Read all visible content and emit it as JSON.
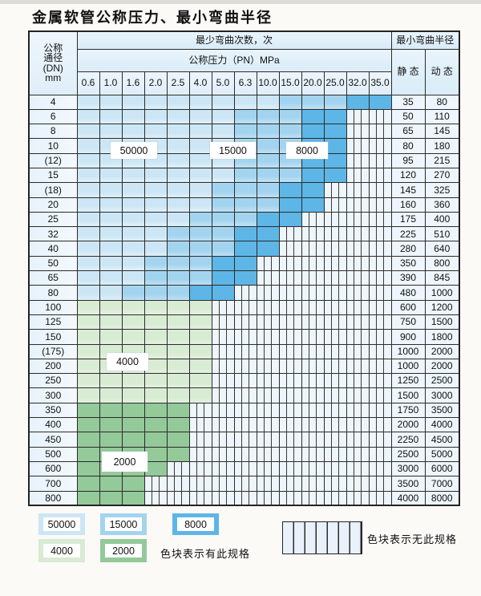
{
  "title": "金属软管公称压力、最小弯曲半径",
  "colors": {
    "blue_50000": "#cce6f5",
    "blue_15000": "#a3d4ef",
    "blue_8000": "#5db6e6",
    "green_4000": "#d8ebd3",
    "green_2000": "#94c999",
    "hatch_bg": "#eef5fb",
    "grid_line": "#2b2b2b"
  },
  "table": {
    "header": {
      "dn_label_lines": [
        "公称",
        "通径",
        "(DN)",
        "mm"
      ],
      "bend_cycles_label": "最少弯曲次数，次",
      "min_bend_radius_label": "最小弯曲半径",
      "pressure_label": "公称压力（PN）MPa",
      "static_label": "静 态",
      "dynamic_label": "动 态",
      "pressure_columns": [
        "0.6",
        "1.0",
        "1.6",
        "2.0",
        "2.5",
        "4.0",
        "5.0",
        "6.3",
        "10.0",
        "15.0",
        "20.0",
        "25.0",
        "32.0",
        "35.0"
      ]
    },
    "rows": [
      {
        "dn": "4",
        "colored": 14,
        "zone": "blue",
        "static": "35",
        "dynamic": "80"
      },
      {
        "dn": "6",
        "colored": 12,
        "zone": "blue",
        "static": "50",
        "dynamic": "110"
      },
      {
        "dn": "8",
        "colored": 12,
        "zone": "blue",
        "static": "65",
        "dynamic": "145"
      },
      {
        "dn": "10",
        "colored": 12,
        "zone": "blue",
        "static": "80",
        "dynamic": "180"
      },
      {
        "dn": "(12)",
        "colored": 12,
        "zone": "blue",
        "static": "95",
        "dynamic": "215"
      },
      {
        "dn": "15",
        "colored": 12,
        "zone": "blue",
        "static": "120",
        "dynamic": "270"
      },
      {
        "dn": "(18)",
        "colored": 11,
        "zone": "blue",
        "static": "145",
        "dynamic": "325"
      },
      {
        "dn": "20",
        "colored": 11,
        "zone": "blue",
        "static": "160",
        "dynamic": "360"
      },
      {
        "dn": "25",
        "colored": 10,
        "zone": "blue",
        "static": "175",
        "dynamic": "400"
      },
      {
        "dn": "32",
        "colored": 9,
        "zone": "blue",
        "static": "225",
        "dynamic": "510"
      },
      {
        "dn": "40",
        "colored": 9,
        "zone": "blue",
        "static": "280",
        "dynamic": "640"
      },
      {
        "dn": "50",
        "colored": 8,
        "zone": "blue",
        "static": "350",
        "dynamic": "800"
      },
      {
        "dn": "65",
        "colored": 8,
        "zone": "blue",
        "static": "390",
        "dynamic": "845"
      },
      {
        "dn": "80",
        "colored": 7,
        "zone": "blue",
        "static": "480",
        "dynamic": "1000"
      },
      {
        "dn": "100",
        "colored": 6,
        "zone": "green-4000",
        "static": "600",
        "dynamic": "1200"
      },
      {
        "dn": "125",
        "colored": 6,
        "zone": "green-4000",
        "static": "750",
        "dynamic": "1500"
      },
      {
        "dn": "150",
        "colored": 6,
        "zone": "green-4000",
        "static": "900",
        "dynamic": "1800"
      },
      {
        "dn": "(175)",
        "colored": 6,
        "zone": "green-4000",
        "static": "1000",
        "dynamic": "2000"
      },
      {
        "dn": "200",
        "colored": 6,
        "zone": "green-4000",
        "static": "1000",
        "dynamic": "2000"
      },
      {
        "dn": "250",
        "colored": 6,
        "zone": "green-4000",
        "static": "1250",
        "dynamic": "2500"
      },
      {
        "dn": "300",
        "colored": 6,
        "zone": "green-4000",
        "static": "1500",
        "dynamic": "3000"
      },
      {
        "dn": "350",
        "colored": 5,
        "zone": "green-2000",
        "static": "1750",
        "dynamic": "3500"
      },
      {
        "dn": "400",
        "colored": 5,
        "zone": "green-2000",
        "static": "2000",
        "dynamic": "4000"
      },
      {
        "dn": "450",
        "colored": 5,
        "zone": "green-2000",
        "static": "2250",
        "dynamic": "4500"
      },
      {
        "dn": "500",
        "colored": 5,
        "zone": "green-2000",
        "static": "2500",
        "dynamic": "5000"
      },
      {
        "dn": "600",
        "colored": 4,
        "zone": "green-2000",
        "static": "3000",
        "dynamic": "6000"
      },
      {
        "dn": "700",
        "colored": 3,
        "zone": "green-2000",
        "static": "3500",
        "dynamic": "7000"
      },
      {
        "dn": "800",
        "colored": 3,
        "zone": "green-2000",
        "static": "4000",
        "dynamic": "8000"
      }
    ]
  },
  "legend": {
    "has_spec_items": [
      {
        "label": "50000",
        "color": "#cce6f5"
      },
      {
        "label": "15000",
        "color": "#a3d4ef"
      },
      {
        "label": "8000",
        "color": "#5db6e6"
      },
      {
        "label": "4000",
        "color": "#d8ebd3"
      },
      {
        "label": "2000",
        "color": "#94c999"
      }
    ],
    "has_spec_note": "色块表示有此规格",
    "no_spec_note": "色块表示无此规格"
  }
}
